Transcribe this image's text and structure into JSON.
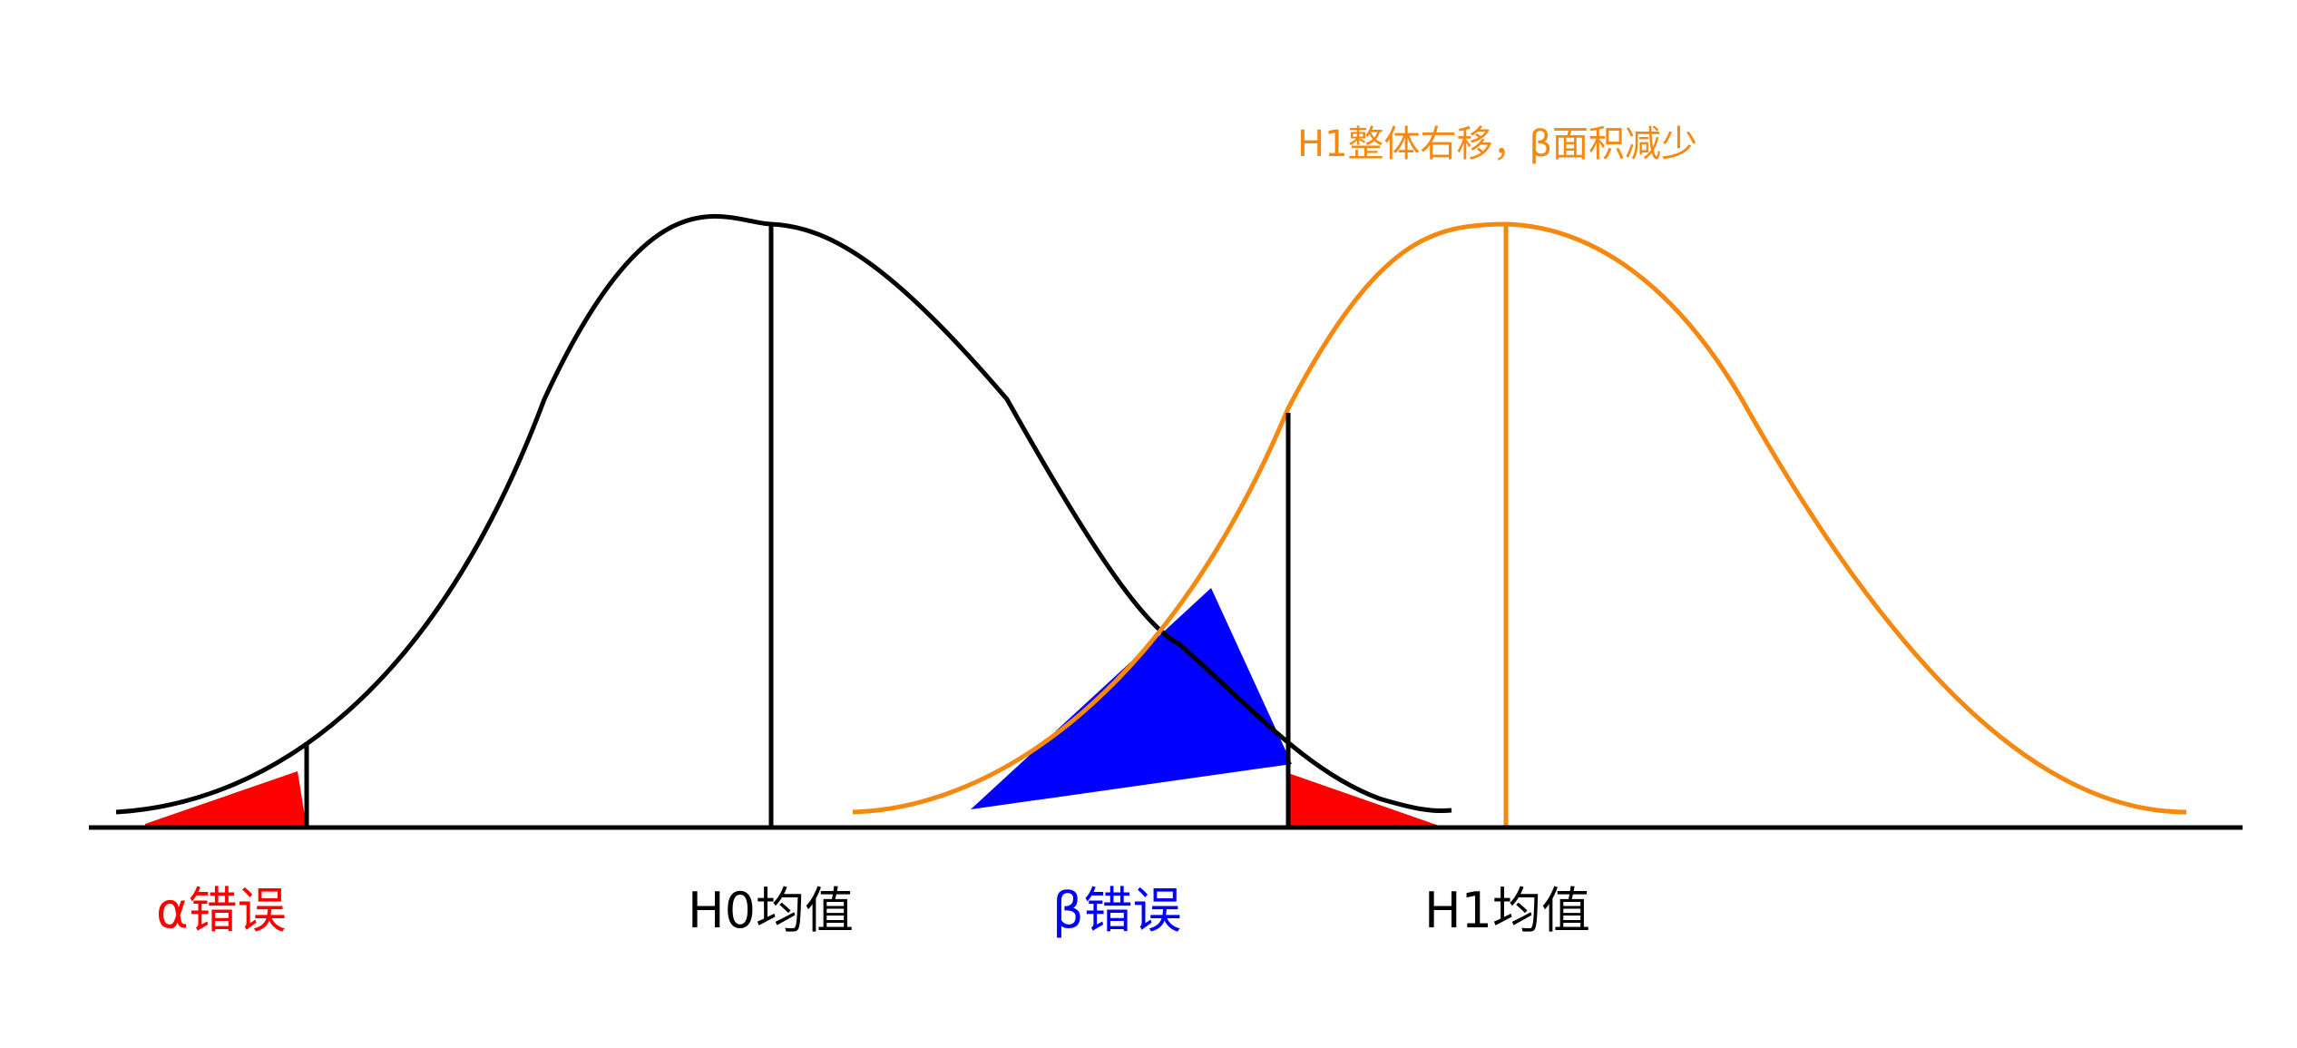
{
  "annotation": {
    "text": "H1整体右移，β面积减少",
    "color": "#F5890F"
  },
  "labels": {
    "alpha_error": "α错误",
    "h0_mean": "H0均值",
    "beta_error": "β错误",
    "h1_mean": "H1均值"
  },
  "colors": {
    "h0_curve": "#000000",
    "h1_curve": "#F5890F",
    "alpha_region": "#FF0000",
    "beta_region": "#0000FF",
    "baseline": "#000000",
    "alpha_label": "#FF0000",
    "beta_label": "#0000FF",
    "mean_label": "#000000"
  }
}
